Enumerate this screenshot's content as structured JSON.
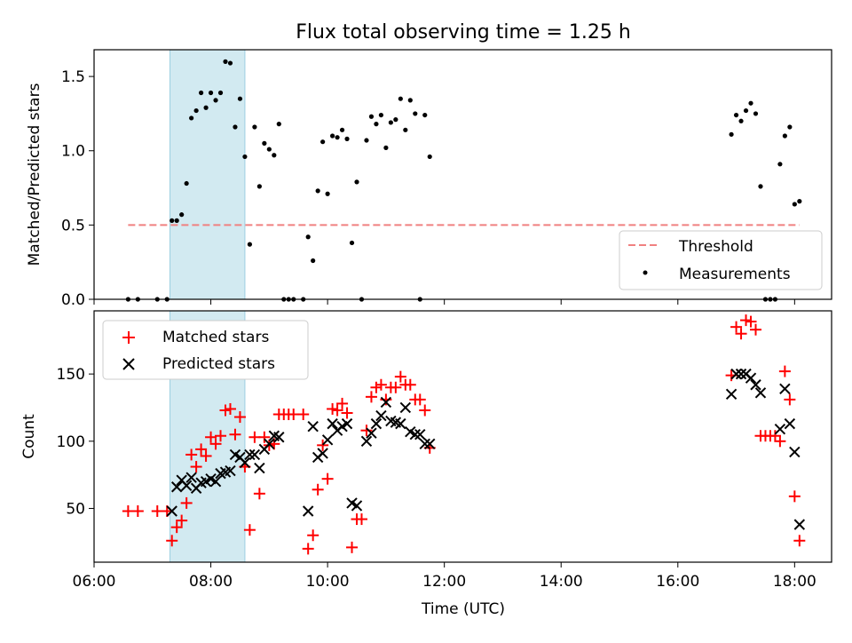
{
  "title": "Flux total observing time = 1.25 h",
  "colors": {
    "threshold": "#f08080",
    "measurement": "#000000",
    "matched": "#ff0000",
    "predicted": "#000000",
    "highlight": "#add8e6"
  },
  "chart_data": [
    {
      "type": "scatter",
      "ylabel": "Matched/Predicted stars",
      "ylim": [
        0,
        1.68
      ],
      "yticks": [
        0.0,
        0.5,
        1.0,
        1.5
      ],
      "ytick_labels": [
        "0.0",
        "0.5",
        "1.0",
        "1.5"
      ],
      "xlim": [
        "06:00",
        "18:38"
      ],
      "highlight_span": [
        "07:18",
        "08:35"
      ],
      "threshold": {
        "name": "Threshold",
        "value": 0.5,
        "x": [
          "06:35",
          "18:05"
        ]
      },
      "legend": {
        "placement": "lower right",
        "entries": [
          "Threshold",
          "Measurements"
        ]
      },
      "series": [
        {
          "name": "Measurements",
          "points": [
            [
              "06:35",
              0
            ],
            [
              "06:45",
              0
            ],
            [
              "07:05",
              0
            ],
            [
              "07:15",
              0
            ],
            [
              "07:20",
              0.53
            ],
            [
              "07:25",
              0.53
            ],
            [
              "07:30",
              0.57
            ],
            [
              "07:35",
              0.78
            ],
            [
              "07:40",
              1.22
            ],
            [
              "07:45",
              1.27
            ],
            [
              "07:50",
              1.39
            ],
            [
              "07:55",
              1.29
            ],
            [
              "08:00",
              1.39
            ],
            [
              "08:05",
              1.34
            ],
            [
              "08:10",
              1.39
            ],
            [
              "08:15",
              1.6
            ],
            [
              "08:20",
              1.59
            ],
            [
              "08:25",
              1.16
            ],
            [
              "08:30",
              1.35
            ],
            [
              "08:35",
              0.96
            ],
            [
              "08:40",
              0.37
            ],
            [
              "08:45",
              1.16
            ],
            [
              "08:50",
              0.76
            ],
            [
              "08:55",
              1.05
            ],
            [
              "09:00",
              1.01
            ],
            [
              "09:05",
              0.97
            ],
            [
              "09:10",
              1.18
            ],
            [
              "09:15",
              0
            ],
            [
              "09:20",
              0
            ],
            [
              "09:25",
              0
            ],
            [
              "09:35",
              0
            ],
            [
              "09:40",
              0.42
            ],
            [
              "09:45",
              0.26
            ],
            [
              "09:50",
              0.73
            ],
            [
              "09:55",
              1.06
            ],
            [
              "10:00",
              0.71
            ],
            [
              "10:05",
              1.1
            ],
            [
              "10:10",
              1.09
            ],
            [
              "10:15",
              1.14
            ],
            [
              "10:20",
              1.08
            ],
            [
              "10:25",
              0.38
            ],
            [
              "10:30",
              0.79
            ],
            [
              "10:35",
              0
            ],
            [
              "10:40",
              1.07
            ],
            [
              "10:45",
              1.23
            ],
            [
              "10:50",
              1.18
            ],
            [
              "10:55",
              1.24
            ],
            [
              "11:00",
              1.02
            ],
            [
              "11:05",
              1.19
            ],
            [
              "11:10",
              1.21
            ],
            [
              "11:15",
              1.35
            ],
            [
              "11:20",
              1.14
            ],
            [
              "11:25",
              1.34
            ],
            [
              "11:30",
              1.25
            ],
            [
              "11:35",
              0
            ],
            [
              "11:40",
              1.24
            ],
            [
              "11:45",
              0.96
            ],
            [
              "16:55",
              1.11
            ],
            [
              "17:00",
              1.24
            ],
            [
              "17:05",
              1.2
            ],
            [
              "17:10",
              1.27
            ],
            [
              "17:15",
              1.32
            ],
            [
              "17:20",
              1.25
            ],
            [
              "17:25",
              0.76
            ],
            [
              "17:30",
              0
            ],
            [
              "17:35",
              0
            ],
            [
              "17:40",
              0
            ],
            [
              "17:45",
              0.91
            ],
            [
              "17:50",
              1.1
            ],
            [
              "17:55",
              1.16
            ],
            [
              "18:00",
              0.64
            ],
            [
              "18:05",
              0.66
            ]
          ]
        }
      ]
    },
    {
      "type": "scatter",
      "xlabel": "Time (UTC)",
      "ylabel": "Count",
      "ylim": [
        10,
        197
      ],
      "yticks": [
        50,
        100,
        150
      ],
      "ytick_labels": [
        "50",
        "100",
        "150"
      ],
      "xlim": [
        "06:00",
        "18:38"
      ],
      "xticks": [
        "06:00",
        "08:00",
        "10:00",
        "12:00",
        "14:00",
        "16:00",
        "18:00"
      ],
      "highlight_span": [
        "07:18",
        "08:35"
      ],
      "legend": {
        "placement": "upper left",
        "entries": [
          "Matched stars",
          "Predicted stars"
        ]
      },
      "series": [
        {
          "name": "Matched stars",
          "marker": "+",
          "points": [
            [
              "06:35",
              48
            ],
            [
              "06:45",
              48
            ],
            [
              "07:05",
              48
            ],
            [
              "07:15",
              48
            ],
            [
              "07:20",
              26
            ],
            [
              "07:25",
              36
            ],
            [
              "07:30",
              41
            ],
            [
              "07:35",
              54
            ],
            [
              "07:40",
              90
            ],
            [
              "07:45",
              81
            ],
            [
              "07:50",
              94
            ],
            [
              "07:55",
              89
            ],
            [
              "08:00",
              103
            ],
            [
              "08:05",
              98
            ],
            [
              "08:10",
              104
            ],
            [
              "08:15",
              123
            ],
            [
              "08:20",
              124
            ],
            [
              "08:25",
              105
            ],
            [
              "08:30",
              118
            ],
            [
              "08:35",
              81
            ],
            [
              "08:40",
              34
            ],
            [
              "08:45",
              103
            ],
            [
              "08:50",
              61
            ],
            [
              "08:55",
              103
            ],
            [
              "09:00",
              97
            ],
            [
              "09:05",
              98
            ],
            [
              "09:10",
              120
            ],
            [
              "09:15",
              120
            ],
            [
              "09:20",
              120
            ],
            [
              "09:25",
              120
            ],
            [
              "09:35",
              120
            ],
            [
              "09:40",
              20
            ],
            [
              "09:45",
              30
            ],
            [
              "09:50",
              64
            ],
            [
              "09:55",
              97
            ],
            [
              "10:00",
              72
            ],
            [
              "10:05",
              124
            ],
            [
              "10:10",
              123
            ],
            [
              "10:15",
              128
            ],
            [
              "10:20",
              121
            ],
            [
              "10:25",
              21
            ],
            [
              "10:30",
              42
            ],
            [
              "10:35",
              42
            ],
            [
              "10:40",
              108
            ],
            [
              "10:45",
              133
            ],
            [
              "10:50",
              140
            ],
            [
              "10:55",
              142
            ],
            [
              "11:00",
              131
            ],
            [
              "11:05",
              140
            ],
            [
              "11:10",
              140
            ],
            [
              "11:15",
              148
            ],
            [
              "11:20",
              142
            ],
            [
              "11:25",
              142
            ],
            [
              "11:30",
              131
            ],
            [
              "11:35",
              131
            ],
            [
              "11:40",
              123
            ],
            [
              "11:45",
              95
            ],
            [
              "16:55",
              149
            ],
            [
              "17:00",
              185
            ],
            [
              "17:05",
              180
            ],
            [
              "17:10",
              190
            ],
            [
              "17:15",
              189
            ],
            [
              "17:20",
              183
            ],
            [
              "17:25",
              104
            ],
            [
              "17:30",
              104
            ],
            [
              "17:35",
              104
            ],
            [
              "17:40",
              104
            ],
            [
              "17:45",
              100
            ],
            [
              "17:50",
              152
            ],
            [
              "17:55",
              131
            ],
            [
              "18:00",
              59
            ],
            [
              "18:05",
              26
            ]
          ]
        },
        {
          "name": "Predicted stars",
          "marker": "x",
          "points": [
            [
              "07:20",
              48
            ],
            [
              "07:25",
              66
            ],
            [
              "07:30",
              71
            ],
            [
              "07:35",
              67
            ],
            [
              "07:40",
              73
            ],
            [
              "07:45",
              65
            ],
            [
              "07:50",
              69
            ],
            [
              "07:55",
              70
            ],
            [
              "08:00",
              72
            ],
            [
              "08:05",
              70
            ],
            [
              "08:10",
              76
            ],
            [
              "08:15",
              77
            ],
            [
              "08:20",
              78
            ],
            [
              "08:25",
              90
            ],
            [
              "08:30",
              88
            ],
            [
              "08:35",
              84
            ],
            [
              "08:40",
              90
            ],
            [
              "08:45",
              90
            ],
            [
              "08:50",
              80
            ],
            [
              "08:55",
              94
            ],
            [
              "09:00",
              98
            ],
            [
              "09:05",
              104
            ],
            [
              "09:10",
              103
            ],
            [
              "09:40",
              48
            ],
            [
              "09:45",
              111
            ],
            [
              "09:50",
              88
            ],
            [
              "09:55",
              91
            ],
            [
              "10:00",
              101
            ],
            [
              "10:05",
              113
            ],
            [
              "10:10",
              108
            ],
            [
              "10:15",
              111
            ],
            [
              "10:20",
              113
            ],
            [
              "10:25",
              54
            ],
            [
              "10:30",
              52
            ],
            [
              "10:40",
              100
            ],
            [
              "10:45",
              106
            ],
            [
              "10:50",
              113
            ],
            [
              "10:55",
              119
            ],
            [
              "11:00",
              129
            ],
            [
              "11:05",
              115
            ],
            [
              "11:10",
              114
            ],
            [
              "11:15",
              113
            ],
            [
              "11:20",
              125
            ],
            [
              "11:25",
              107
            ],
            [
              "11:30",
              105
            ],
            [
              "11:35",
              105
            ],
            [
              "11:40",
              98
            ],
            [
              "11:45",
              98
            ],
            [
              "16:55",
              135
            ],
            [
              "17:00",
              150
            ],
            [
              "17:05",
              150
            ],
            [
              "17:10",
              150
            ],
            [
              "17:15",
              147
            ],
            [
              "17:20",
              142
            ],
            [
              "17:25",
              136
            ],
            [
              "17:45",
              109
            ],
            [
              "17:50",
              139
            ],
            [
              "17:55",
              113
            ],
            [
              "18:00",
              92
            ],
            [
              "18:05",
              38
            ]
          ]
        }
      ]
    }
  ]
}
